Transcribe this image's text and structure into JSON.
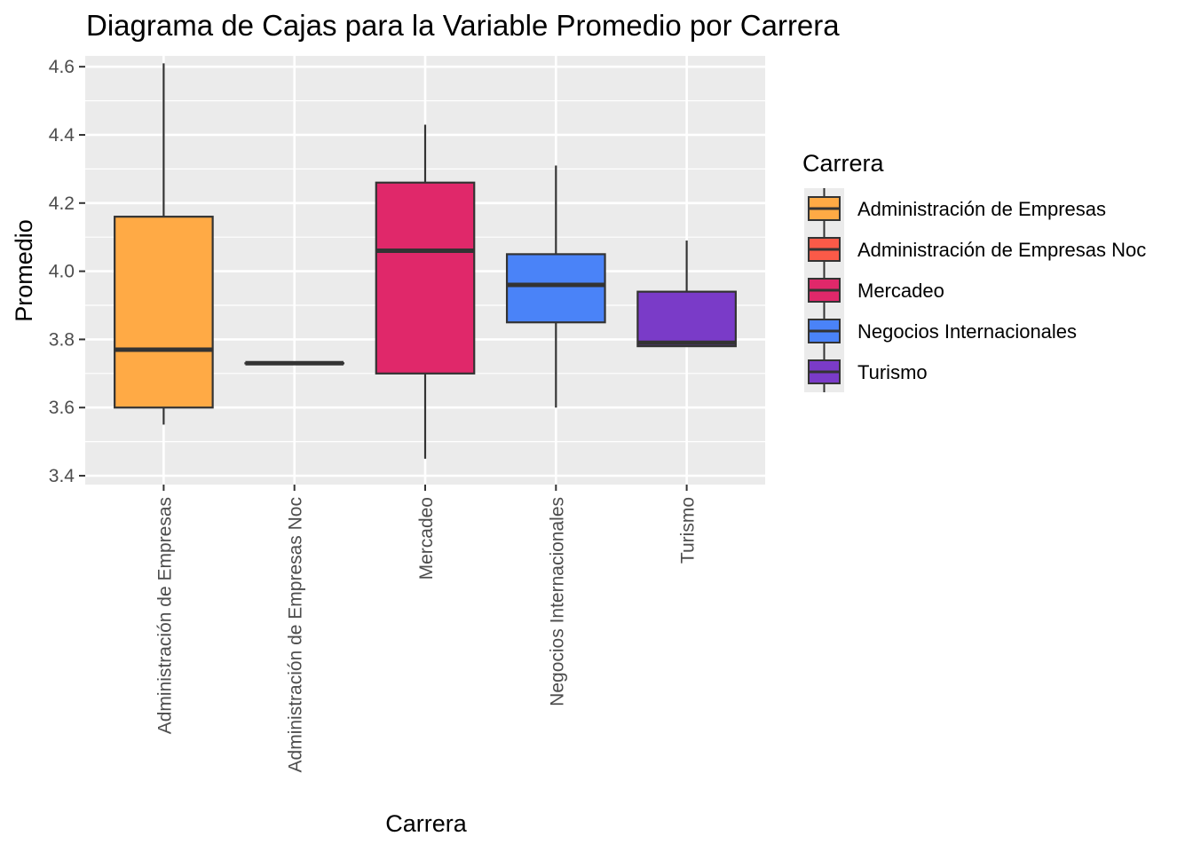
{
  "chart_data": {
    "type": "boxplot",
    "title": "Diagrama de Cajas para la Variable Promedio por Carrera",
    "xlabel": "Carrera",
    "ylabel": "Promedio",
    "ylim": [
      3.4,
      4.6
    ],
    "yticks": [
      "3.4",
      "3.6",
      "3.8",
      "4.0",
      "4.2",
      "4.4",
      "4.6"
    ],
    "grid": true,
    "legend": {
      "title": "Carrera",
      "position": "right"
    },
    "categories": [
      "Administración de Empresas",
      "Administración de Empresas Noc",
      "Mercadeo",
      "Negocios Internacionales",
      "Turismo"
    ],
    "boxes": [
      {
        "category": "Administración de Empresas",
        "min": 3.55,
        "q1": 3.6,
        "median": 3.77,
        "q3": 4.16,
        "max": 4.61,
        "color": "#FFAA45"
      },
      {
        "category": "Administración de Empresas Noc",
        "min": 3.73,
        "q1": 3.73,
        "median": 3.73,
        "q3": 3.73,
        "max": 3.73,
        "color": "#FA5A48"
      },
      {
        "category": "Mercadeo",
        "min": 3.45,
        "q1": 3.7,
        "median": 4.06,
        "q3": 4.26,
        "max": 4.43,
        "color": "#E0286A"
      },
      {
        "category": "Negocios Internacionales",
        "min": 3.6,
        "q1": 3.85,
        "median": 3.96,
        "q3": 4.05,
        "max": 4.31,
        "color": "#4A83F8"
      },
      {
        "category": "Turismo",
        "min": 3.78,
        "q1": 3.78,
        "median": 3.79,
        "q3": 3.94,
        "max": 4.09,
        "color": "#7A3BC8"
      }
    ]
  }
}
